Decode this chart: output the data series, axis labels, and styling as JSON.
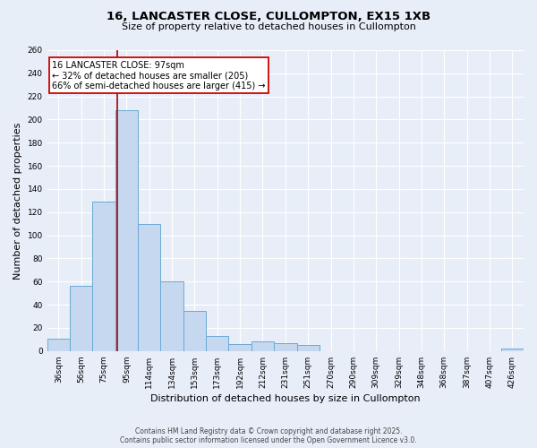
{
  "title_line1": "16, LANCASTER CLOSE, CULLOMPTON, EX15 1XB",
  "title_line2": "Size of property relative to detached houses in Cullompton",
  "xlabel": "Distribution of detached houses by size in Cullompton",
  "ylabel": "Number of detached properties",
  "bar_labels": [
    "36sqm",
    "56sqm",
    "75sqm",
    "95sqm",
    "114sqm",
    "134sqm",
    "153sqm",
    "173sqm",
    "192sqm",
    "212sqm",
    "231sqm",
    "251sqm",
    "270sqm",
    "290sqm",
    "309sqm",
    "329sqm",
    "348sqm",
    "368sqm",
    "387sqm",
    "407sqm",
    "426sqm"
  ],
  "bar_values": [
    11,
    56,
    129,
    208,
    110,
    60,
    35,
    13,
    6,
    8,
    7,
    5,
    0,
    0,
    0,
    0,
    0,
    0,
    0,
    0,
    2
  ],
  "bar_color": "#c5d8ef",
  "bar_edge_color": "#6aaad4",
  "bg_color": "#e8eef8",
  "grid_color": "#ffffff",
  "subject_line_color": "#aa0000",
  "annotation_text": "16 LANCASTER CLOSE: 97sqm\n← 32% of detached houses are smaller (205)\n66% of semi-detached houses are larger (415) →",
  "annotation_box_color": "#ffffff",
  "annotation_box_edge": "#cc0000",
  "ylim": [
    0,
    260
  ],
  "yticks": [
    0,
    20,
    40,
    60,
    80,
    100,
    120,
    140,
    160,
    180,
    200,
    220,
    240,
    260
  ],
  "footnote1": "Contains HM Land Registry data © Crown copyright and database right 2025.",
  "footnote2": "Contains public sector information licensed under the Open Government Licence v3.0."
}
